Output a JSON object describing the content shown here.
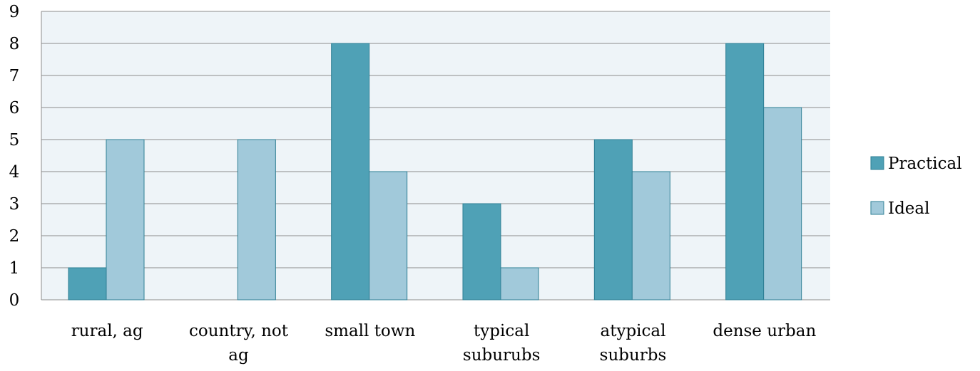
{
  "chart_data": {
    "type": "bar",
    "categories": [
      [
        "rural, ag"
      ],
      [
        "country, not",
        "ag"
      ],
      [
        "small town"
      ],
      [
        "typical",
        "suburubs"
      ],
      [
        "atypical",
        "suburbs"
      ],
      [
        "dense urban"
      ]
    ],
    "series": [
      {
        "name": "Practical",
        "values": [
          1,
          0,
          8,
          3,
          5,
          8
        ],
        "color": "#4FA1B6"
      },
      {
        "name": "Ideal",
        "values": [
          5,
          5,
          4,
          1,
          4,
          6
        ],
        "color": "#A1C9DA"
      }
    ],
    "y_ticks": [
      "0",
      "1",
      "2",
      "3",
      "4",
      "5",
      "6",
      "7",
      "8",
      "9"
    ],
    "ylim": [
      0,
      9
    ],
    "title": "",
    "xlabel": "",
    "ylabel": "",
    "grid": true,
    "legend_position": "right",
    "plot_background": "#EEF4F8",
    "grid_color": "#8C8C8C",
    "bar_edge_color": "#2E7F94"
  }
}
